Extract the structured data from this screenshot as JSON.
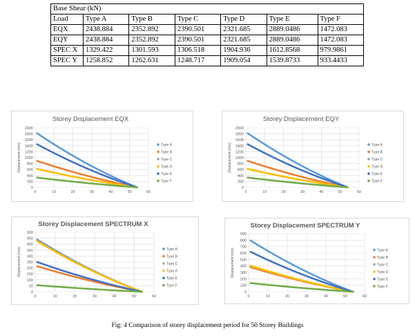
{
  "table": {
    "title": "Base Shear (kN)",
    "header": [
      "Load",
      "Type A",
      "Type B",
      "Type C",
      "Type D",
      "Type E",
      "Type F"
    ],
    "rows": [
      [
        "EQX",
        "2438.884",
        "2352.892",
        "2390.501",
        "2321.685",
        "2889.0486",
        "1472.083"
      ],
      [
        "EQY",
        "2438.884",
        "2352.892",
        "2390.501",
        "2321.685",
        "2889.0486",
        "1472.083"
      ],
      [
        "SPEC X",
        "1329.422",
        "1301.593",
        "1306.518",
        "1904.936",
        "1612.8568",
        "979.9861"
      ],
      [
        "SPEC Y",
        "1258.852",
        "1262.631",
        "1248.717",
        "1909.054",
        "1539.8733",
        "933.4433"
      ]
    ]
  },
  "colors": {
    "Type A": "#5b9bd5",
    "Type B": "#ed7d31",
    "Type C": "#a5a5a5",
    "Type D": "#ffc000",
    "Type E": "#4472c4",
    "Type F": "#70ad47"
  },
  "caption": "Fig: 4 Comparison of storey displacement period for 50 Storey Buildings",
  "chart_data": [
    {
      "type": "scatter",
      "title": "Storey Displacement EQX",
      "xlabel": "",
      "ylabel": "Displacement (mm)",
      "xlim": [
        0,
        60
      ],
      "ylim": [
        0,
        2000
      ],
      "xticks": [
        0,
        10,
        20,
        30,
        40,
        50,
        60
      ],
      "yticks": [
        0,
        200,
        400,
        600,
        800,
        1000,
        1200,
        1400,
        1600,
        1800,
        2000
      ],
      "grid": true,
      "legend": "right",
      "series": [
        {
          "name": "Type A",
          "start": [
            1,
            1820
          ],
          "end": [
            54,
            0
          ]
        },
        {
          "name": "Type B",
          "start": [
            1,
            890
          ],
          "end": [
            54,
            0
          ]
        },
        {
          "name": "Type C",
          "start": [
            1,
            620
          ],
          "end": [
            54,
            0
          ]
        },
        {
          "name": "Type D",
          "start": [
            1,
            620
          ],
          "end": [
            54,
            0
          ]
        },
        {
          "name": "Type E",
          "start": [
            1,
            1450
          ],
          "end": [
            54,
            0
          ]
        },
        {
          "name": "Type F",
          "start": [
            1,
            330
          ],
          "end": [
            54,
            0
          ]
        }
      ]
    },
    {
      "type": "scatter",
      "title": "Storey Displacement EQY",
      "xlabel": "",
      "ylabel": "Displacement (mm)",
      "xlim": [
        0,
        60
      ],
      "ylim": [
        0,
        2000
      ],
      "xticks": [
        0,
        10,
        20,
        30,
        40,
        50,
        60
      ],
      "yticks": [
        0,
        200,
        400,
        600,
        800,
        1000,
        1200,
        1400,
        1600,
        1800,
        2000
      ],
      "grid": true,
      "legend": "right",
      "series": [
        {
          "name": "Type A",
          "start": [
            1,
            1820
          ],
          "end": [
            54,
            0
          ]
        },
        {
          "name": "Type B",
          "start": [
            1,
            890
          ],
          "end": [
            54,
            0
          ]
        },
        {
          "name": "Type C",
          "start": [
            1,
            620
          ],
          "end": [
            54,
            0
          ]
        },
        {
          "name": "Type D",
          "start": [
            1,
            620
          ],
          "end": [
            54,
            0
          ]
        },
        {
          "name": "Type E",
          "start": [
            1,
            1450
          ],
          "end": [
            54,
            0
          ]
        },
        {
          "name": "Type F",
          "start": [
            1,
            330
          ],
          "end": [
            54,
            0
          ]
        }
      ]
    },
    {
      "type": "scatter",
      "title": "Storey Displacement SPECTRUM X",
      "xlabel": "",
      "ylabel": "Displacement (mm)",
      "xlim": [
        0,
        60
      ],
      "ylim": [
        0,
        500
      ],
      "xticks": [
        0,
        10,
        20,
        30,
        40,
        50,
        60
      ],
      "yticks": [
        0,
        50,
        100,
        150,
        200,
        250,
        300,
        350,
        400,
        450,
        500
      ],
      "grid": true,
      "legend": "right",
      "series": [
        {
          "name": "Type A",
          "start": [
            1,
            440
          ],
          "end": [
            54,
            0
          ]
        },
        {
          "name": "Type B",
          "start": [
            1,
            215
          ],
          "end": [
            54,
            0
          ]
        },
        {
          "name": "Type C",
          "start": [
            1,
            430
          ],
          "end": [
            54,
            0
          ]
        },
        {
          "name": "Type D",
          "start": [
            1,
            425
          ],
          "end": [
            54,
            0
          ]
        },
        {
          "name": "Type E",
          "start": [
            1,
            250
          ],
          "end": [
            54,
            0
          ]
        },
        {
          "name": "Type F",
          "start": [
            1,
            55
          ],
          "end": [
            54,
            0
          ]
        }
      ]
    },
    {
      "type": "scatter",
      "title": "Storey Displacement SPECTRUM Y",
      "xlabel": "",
      "ylabel": "Displacement (mm)",
      "xlim": [
        0,
        60
      ],
      "ylim": [
        0,
        900
      ],
      "xticks": [
        0,
        10,
        20,
        30,
        40,
        50,
        60
      ],
      "yticks": [
        0,
        100,
        200,
        300,
        400,
        500,
        600,
        700,
        800,
        900
      ],
      "grid": true,
      "legend": "right",
      "series": [
        {
          "name": "Type A",
          "start": [
            1,
            795
          ],
          "end": [
            54,
            0
          ]
        },
        {
          "name": "Type B",
          "start": [
            1,
            380
          ],
          "end": [
            54,
            0
          ]
        },
        {
          "name": "Type C",
          "start": [
            1,
            400
          ],
          "end": [
            54,
            0
          ]
        },
        {
          "name": "Type D",
          "start": [
            1,
            405
          ],
          "end": [
            54,
            0
          ]
        },
        {
          "name": "Type E",
          "start": [
            1,
            620
          ],
          "end": [
            54,
            0
          ]
        },
        {
          "name": "Type F",
          "start": [
            1,
            135
          ],
          "end": [
            54,
            0
          ]
        }
      ]
    }
  ]
}
